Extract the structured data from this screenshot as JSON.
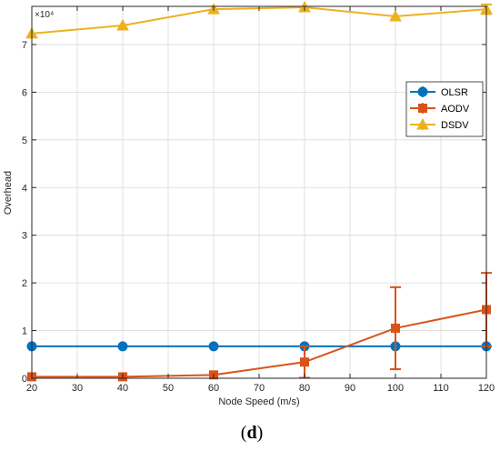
{
  "chart_data": {
    "type": "line",
    "xlabel": "Node Speed (m/s)",
    "ylabel": "Overhead",
    "y_multiplier": "×10⁴",
    "caption_open": "(",
    "caption_letter": "d",
    "caption_close": ")",
    "xlim": [
      20,
      120
    ],
    "ylim": [
      0,
      78000
    ],
    "xticks": [
      20,
      30,
      40,
      50,
      60,
      70,
      80,
      90,
      100,
      110,
      120
    ],
    "yticks": [
      0,
      1,
      2,
      3,
      4,
      5,
      6,
      7
    ],
    "ytick_scale": 10000,
    "grid": true,
    "legend_position": "top-right",
    "series": [
      {
        "name": "OLSR",
        "color": "#0072BD",
        "marker": "circle",
        "x": [
          20,
          40,
          60,
          80,
          100,
          120
        ],
        "y": [
          6700,
          6700,
          6700,
          6700,
          6700,
          6700
        ],
        "err": [
          0,
          0,
          0,
          0,
          0,
          0
        ]
      },
      {
        "name": "AODV",
        "color": "#D95319",
        "marker": "square",
        "x": [
          20,
          40,
          60,
          80,
          100,
          120
        ],
        "y": [
          300,
          300,
          700,
          3400,
          10500,
          14400
        ],
        "err": [
          0,
          0,
          0,
          3300,
          8600,
          7700
        ]
      },
      {
        "name": "DSDV",
        "color": "#EDB120",
        "marker": "triangle",
        "x": [
          20,
          40,
          60,
          80,
          100,
          120
        ],
        "y": [
          72300,
          74000,
          77400,
          77800,
          75900,
          77400
        ],
        "err": [
          0,
          0,
          0,
          0,
          0,
          1000
        ]
      }
    ]
  }
}
